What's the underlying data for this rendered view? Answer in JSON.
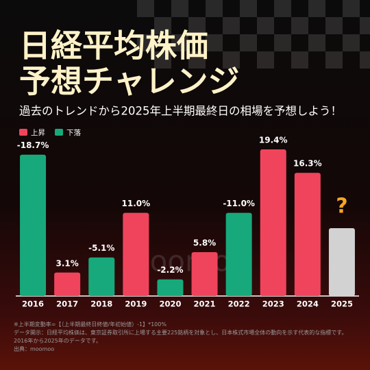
{
  "chart_data": {
    "type": "bar",
    "title": [
      "日経平均株価",
      "予想チャレンジ"
    ],
    "subtitle": "過去のトレンドから2025年上半期最終日の相場を予想しよう！",
    "legend": [
      {
        "name": "上昇",
        "color": "#f0445c"
      },
      {
        "name": "下落",
        "color": "#17a97b"
      }
    ],
    "categories": [
      "2016",
      "2017",
      "2018",
      "2019",
      "2020",
      "2021",
      "2022",
      "2023",
      "2024",
      "2025"
    ],
    "values": [
      -18.7,
      3.1,
      -5.1,
      11.0,
      -2.2,
      5.8,
      -11.0,
      19.4,
      16.3,
      null
    ],
    "value_labels": [
      "-18.7%",
      "3.1%",
      "-5.1%",
      "11.0%",
      "-2.2%",
      "5.8%",
      "-11.0%",
      "19.4%",
      "16.3%",
      null
    ],
    "annotation": "?",
    "watermark": "moomoo",
    "notes": [
      "※上半期変動率=【（上半期最終日終値/年初始値）-1】*100%",
      "データ開示：日経平均株価は、東京証券取引所に上場する主要225銘柄を対象とし、日本株式市場全体の動向を示す代表的な指標です。2016年から2025年のデータです。",
      "出典：moomoo"
    ]
  }
}
